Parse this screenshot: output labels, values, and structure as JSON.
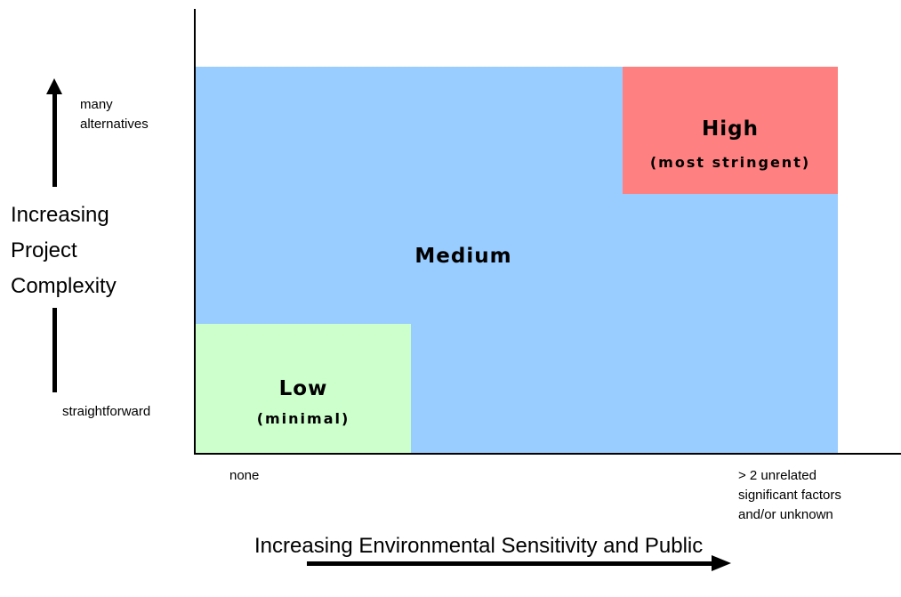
{
  "zones": {
    "medium": {
      "title": "Medium"
    },
    "high": {
      "title": "High",
      "subtitle": "(most stringent)"
    },
    "low": {
      "title": "Low",
      "subtitle": "(minimal)"
    }
  },
  "y_axis": {
    "label_lines": [
      "Increasing",
      "Project",
      "Complexity"
    ],
    "top_label": "many alternatives",
    "bottom_label": "straightforward"
  },
  "x_axis": {
    "label": "Increasing Environmental Sensitivity and Public",
    "left_label": "none",
    "right_label_lines": [
      "> 2 unrelated",
      "significant factors",
      "and/or unknown"
    ]
  },
  "colors": {
    "medium": "#99ccff",
    "high": "#ff8080",
    "low": "#ccffcc"
  }
}
